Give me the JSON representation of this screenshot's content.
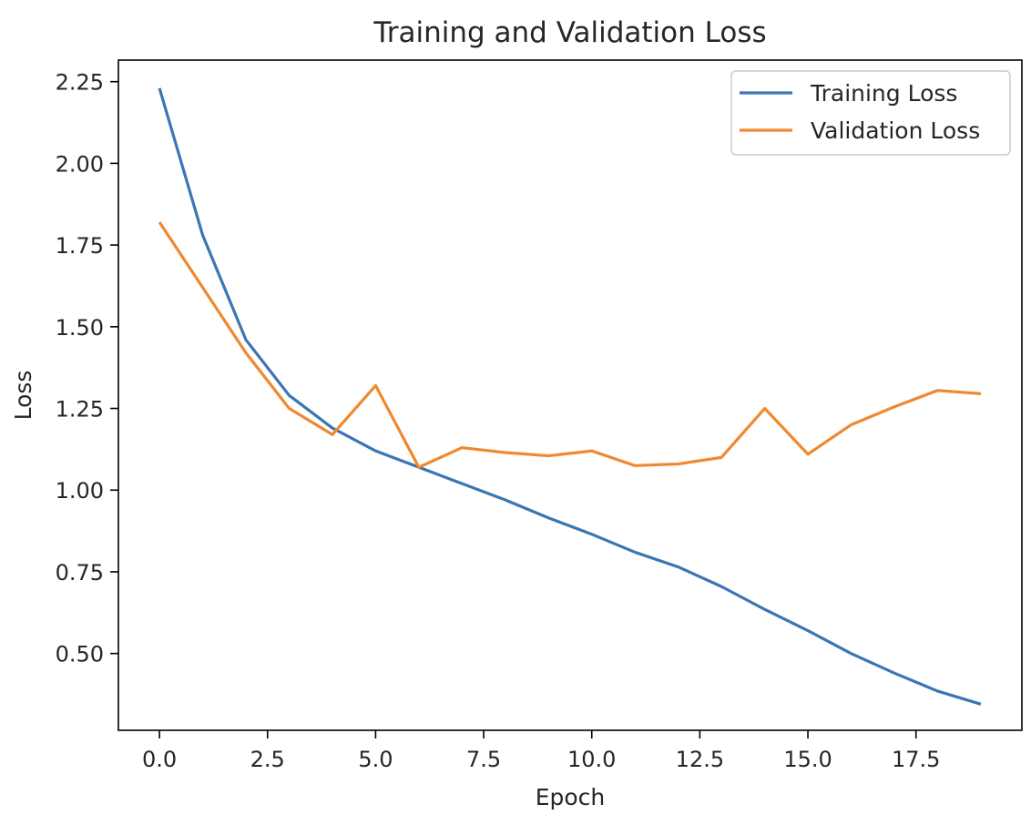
{
  "chart_data": {
    "type": "line",
    "title": "Training and Validation Loss",
    "xlabel": "Epoch",
    "ylabel": "Loss",
    "xlim": [
      -0.95,
      19.95
    ],
    "ylim": [
      0.265,
      2.316
    ],
    "xticks": [
      0.0,
      2.5,
      5.0,
      7.5,
      10.0,
      12.5,
      15.0,
      17.5
    ],
    "xtick_labels": [
      "0.0",
      "2.5",
      "5.0",
      "7.5",
      "10.0",
      "12.5",
      "15.0",
      "17.5"
    ],
    "yticks": [
      0.5,
      0.75,
      1.0,
      1.25,
      1.5,
      1.75,
      2.0,
      2.25
    ],
    "ytick_labels": [
      "0.50",
      "0.75",
      "1.00",
      "1.25",
      "1.50",
      "1.75",
      "2.00",
      "2.25"
    ],
    "grid": false,
    "legend_position": "top-right",
    "x": [
      0,
      1,
      2,
      3,
      4,
      5,
      6,
      7,
      8,
      9,
      10,
      11,
      12,
      13,
      14,
      15,
      16,
      17,
      18,
      19
    ],
    "series": [
      {
        "name": "Training Loss",
        "color": "#3a76b4",
        "values": [
          2.23,
          1.78,
          1.46,
          1.29,
          1.19,
          1.12,
          1.07,
          1.02,
          0.97,
          0.915,
          0.865,
          0.81,
          0.765,
          0.705,
          0.635,
          0.57,
          0.5,
          0.44,
          0.385,
          0.345
        ]
      },
      {
        "name": "Validation Loss",
        "color": "#f0882f",
        "values": [
          1.82,
          1.62,
          1.42,
          1.25,
          1.17,
          1.32,
          1.07,
          1.13,
          1.115,
          1.105,
          1.12,
          1.075,
          1.08,
          1.1,
          1.25,
          1.11,
          1.2,
          1.255,
          1.305,
          1.295
        ]
      }
    ]
  }
}
